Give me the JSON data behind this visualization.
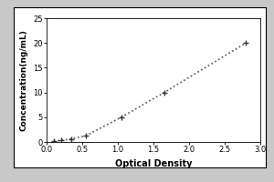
{
  "title": "",
  "xlabel": "Optical Density",
  "ylabel": "Concentration(ng/mL)",
  "xlim": [
    0,
    3
  ],
  "ylim": [
    0,
    25
  ],
  "xticks": [
    0,
    0.5,
    1,
    1.5,
    2,
    2.5,
    3
  ],
  "yticks": [
    0,
    5,
    10,
    15,
    20,
    25
  ],
  "data_points_x": [
    0.1,
    0.2,
    0.35,
    0.55,
    1.05,
    1.65,
    2.8
  ],
  "data_points_y": [
    0.156,
    0.312,
    0.625,
    1.25,
    5.0,
    10.0,
    20.0
  ],
  "line_color": "#555555",
  "marker_style": "+",
  "marker_color": "#333333",
  "marker_size": 5,
  "marker_linewidth": 1.0,
  "linestyle": "dotted",
  "line_width": 1.2,
  "plot_bg_color": "#ffffff",
  "figure_bg_color": "#c8c8c8",
  "white_box_color": "#ffffff",
  "xlabel_fontsize": 7,
  "ylabel_fontsize": 6.5,
  "tick_fontsize": 6,
  "xlabel_fontweight": "bold",
  "ylabel_fontweight": "bold"
}
